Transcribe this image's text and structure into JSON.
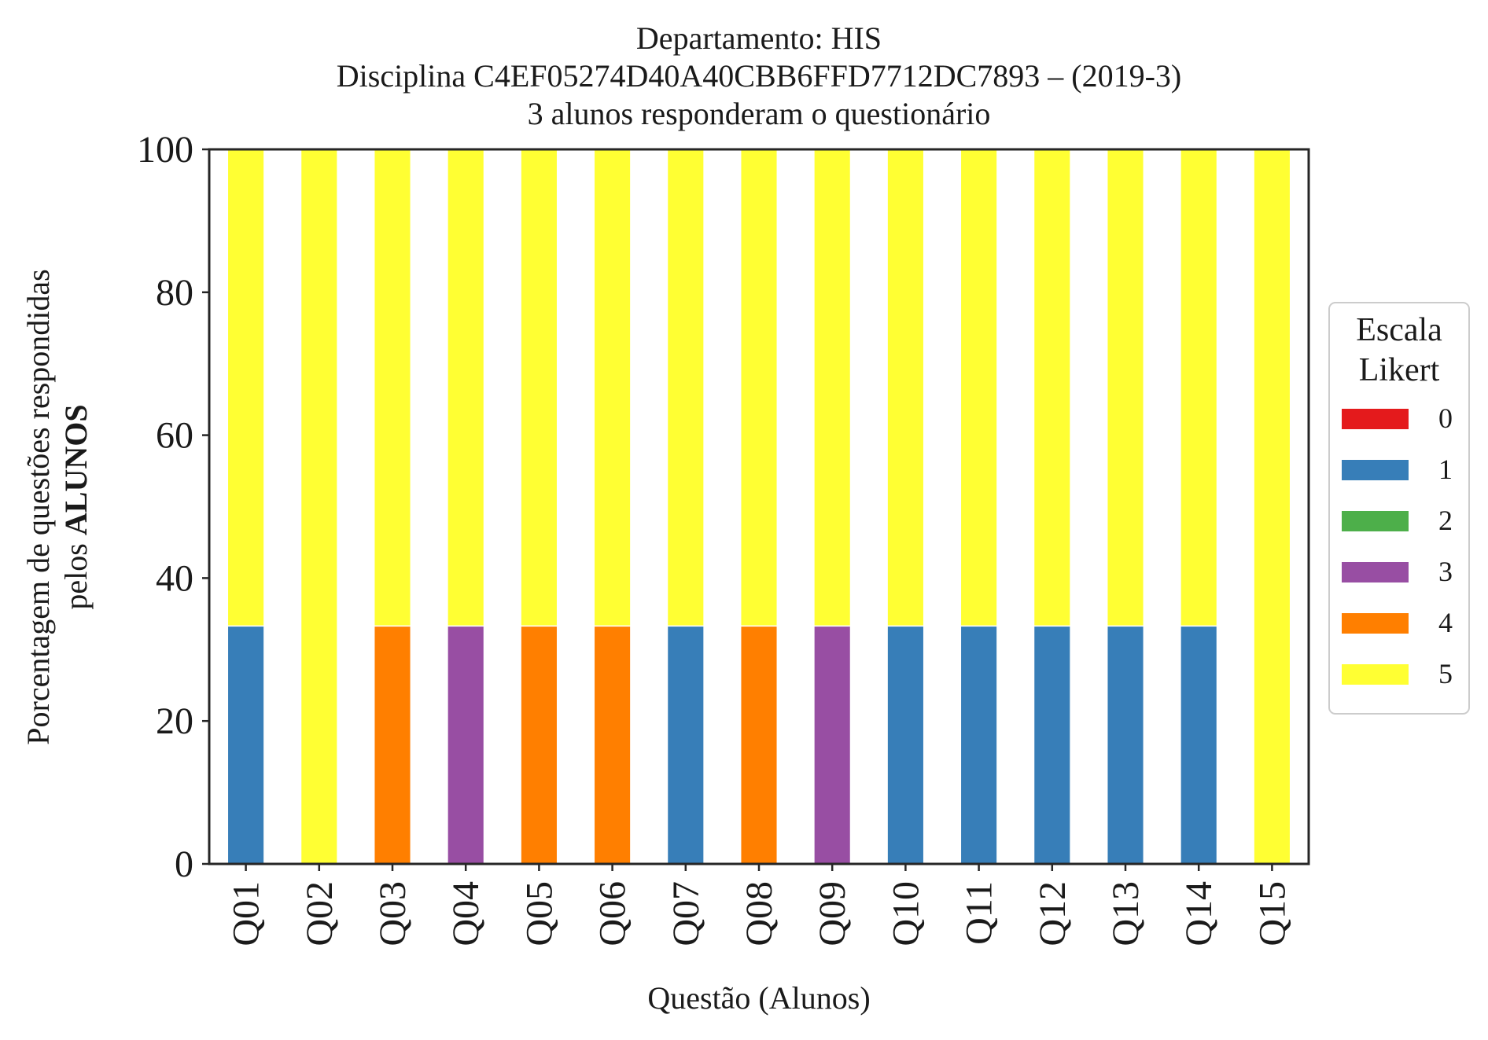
{
  "chart_data": {
    "type": "bar",
    "stacked": true,
    "title_lines": [
      "Departamento: HIS",
      "Disciplina C4EF05274D40A40CBB6FFD7712DC7893 – (2019-3)",
      "3 alunos responderam o questionário"
    ],
    "xlabel": "Questão (Alunos)",
    "ylabel_line1": "Porcentagem de questões respondidas",
    "ylabel_line2_prefix": "pelos ",
    "ylabel_line2_bold": "ALUNOS",
    "ylim": [
      0,
      100
    ],
    "yticks": [
      "0",
      "20",
      "40",
      "60",
      "80",
      "100"
    ],
    "categories": [
      "Q01",
      "Q02",
      "Q03",
      "Q04",
      "Q05",
      "Q06",
      "Q07",
      "Q08",
      "Q09",
      "Q10",
      "Q11",
      "Q12",
      "Q13",
      "Q14",
      "Q15"
    ],
    "legend": {
      "title_lines": [
        "Escala",
        "Likert"
      ],
      "placement": "center-right-outside"
    },
    "series": [
      {
        "name": "0",
        "color": "#e41a1c",
        "values": [
          0,
          0,
          0,
          0,
          0,
          0,
          0,
          0,
          0,
          0,
          0,
          0,
          0,
          0,
          0
        ]
      },
      {
        "name": "1",
        "color": "#377eb8",
        "values": [
          33.3,
          0,
          0,
          0,
          0,
          0,
          33.3,
          0,
          0,
          33.3,
          33.3,
          33.3,
          33.3,
          33.3,
          0
        ]
      },
      {
        "name": "2",
        "color": "#4daf4a",
        "values": [
          0,
          0,
          0,
          0,
          0,
          0,
          0,
          0,
          0,
          0,
          0,
          0,
          0,
          0,
          0
        ]
      },
      {
        "name": "3",
        "color": "#984ea3",
        "values": [
          0,
          0,
          0,
          33.3,
          0,
          0,
          0,
          0,
          33.3,
          0,
          0,
          0,
          0,
          0,
          0
        ]
      },
      {
        "name": "4",
        "color": "#ff7f00",
        "values": [
          0,
          0,
          33.3,
          0,
          33.3,
          33.3,
          0,
          33.3,
          0,
          0,
          0,
          0,
          0,
          0,
          0
        ]
      },
      {
        "name": "5",
        "color": "#ffff33",
        "values": [
          66.7,
          100,
          66.7,
          66.7,
          66.7,
          66.7,
          66.7,
          66.7,
          66.7,
          66.7,
          66.7,
          66.7,
          66.7,
          66.7,
          100
        ]
      }
    ]
  }
}
